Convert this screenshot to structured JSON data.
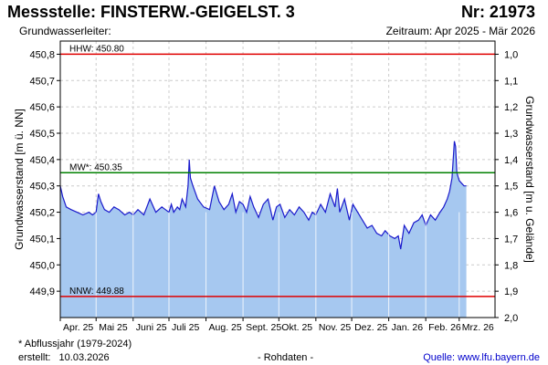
{
  "header": {
    "title": "Messstelle: FINSTERW.-GEIGELST. 3",
    "id_label": "Nr: 21973",
    "subtitle_left": "Grundwasserleiter:",
    "subtitle_right": "Zeitraum: Apr 2025 - Mär 2026"
  },
  "footer": {
    "footnote": "* Abflussjahr (1979-2024)",
    "created_label": "erstellt:",
    "created_date": "10.03.2026",
    "raw_label": "- Rohdaten -",
    "source_label": "Quelle:",
    "source_link": "www.lfu.bayern.de"
  },
  "colors": {
    "area_fill": "#a6c8f0",
    "line": "#1a1acc",
    "hhw": "#e00000",
    "nnw": "#e00000",
    "mw": "#008000",
    "grid": "#cccccc",
    "month_grid": "#ffffff"
  },
  "chart_data": {
    "type": "area",
    "ylabel": "Grundwasserstand [m ü. NN]",
    "ylabel_right": "Grundwasserstand [m u. Gelände]",
    "ylim": [
      449.8,
      450.85
    ],
    "yticks": [
      "449,9",
      "450,0",
      "450,1",
      "450,2",
      "450,3",
      "450,4",
      "450,5",
      "450,6",
      "450,7",
      "450,8"
    ],
    "yticks_right": [
      "1,0",
      "1,1",
      "1,2",
      "1,3",
      "1,4",
      "1,5",
      "1,6",
      "1,7",
      "1,8",
      "1,9",
      "2,0"
    ],
    "x_months": [
      "Apr. 25",
      "Mai 25",
      "Juni 25",
      "Juli 25",
      "Aug. 25",
      "Sept. 25",
      "Okt. 25",
      "Nov. 25",
      "Dez. 25",
      "Jan. 26",
      "Feb. 26",
      "Mrz. 26"
    ],
    "x_start": "2025-04-01",
    "x_end": "2026-03-31",
    "reference_lines": [
      {
        "label": "HHW: 450.80",
        "value": 450.8,
        "color": "#e00000"
      },
      {
        "label": "MW*: 450.35",
        "value": 450.35,
        "color": "#008000"
      },
      {
        "label": "NNW: 449.88",
        "value": 449.88,
        "color": "#e00000"
      }
    ],
    "series": [
      {
        "dates": [
          "2025-04-01",
          "2025-04-03",
          "2025-04-06",
          "2025-04-10",
          "2025-04-15",
          "2025-04-20",
          "2025-04-25",
          "2025-04-28",
          "2025-05-01",
          "2025-05-03",
          "2025-05-05",
          "2025-05-08",
          "2025-05-12",
          "2025-05-16",
          "2025-05-20",
          "2025-05-25",
          "2025-05-29",
          "2025-06-01",
          "2025-06-05",
          "2025-06-10",
          "2025-06-15",
          "2025-06-20",
          "2025-06-25",
          "2025-06-28",
          "2025-07-01",
          "2025-07-03",
          "2025-07-05",
          "2025-07-08",
          "2025-07-10",
          "2025-07-12",
          "2025-07-15",
          "2025-07-17",
          "2025-07-18",
          "2025-07-19",
          "2025-07-21",
          "2025-07-25",
          "2025-07-30",
          "2025-08-04",
          "2025-08-08",
          "2025-08-12",
          "2025-08-16",
          "2025-08-20",
          "2025-08-23",
          "2025-08-26",
          "2025-08-29",
          "2025-09-01",
          "2025-09-04",
          "2025-09-07",
          "2025-09-10",
          "2025-09-14",
          "2025-09-18",
          "2025-09-22",
          "2025-09-26",
          "2025-09-29",
          "2025-10-02",
          "2025-10-06",
          "2025-10-10",
          "2025-10-14",
          "2025-10-18",
          "2025-10-22",
          "2025-10-26",
          "2025-10-29",
          "2025-11-01",
          "2025-11-05",
          "2025-11-09",
          "2025-11-13",
          "2025-11-17",
          "2025-11-19",
          "2025-11-21",
          "2025-11-25",
          "2025-11-29",
          "2025-12-02",
          "2025-12-06",
          "2025-12-10",
          "2025-12-14",
          "2025-12-18",
          "2025-12-22",
          "2025-12-26",
          "2025-12-29",
          "2026-01-02",
          "2026-01-06",
          "2026-01-09",
          "2026-01-11",
          "2026-01-14",
          "2026-01-18",
          "2026-01-22",
          "2026-01-26",
          "2026-01-29",
          "2026-02-01",
          "2026-02-05",
          "2026-02-09",
          "2026-02-13",
          "2026-02-16",
          "2026-02-19",
          "2026-02-21",
          "2026-02-23",
          "2026-02-25",
          "2026-02-26",
          "2026-02-27",
          "2026-03-01",
          "2026-03-03",
          "2026-03-05",
          "2026-03-07"
        ],
        "values": [
          450.3,
          450.26,
          450.22,
          450.21,
          450.2,
          450.19,
          450.2,
          450.19,
          450.2,
          450.27,
          450.24,
          450.21,
          450.2,
          450.22,
          450.21,
          450.19,
          450.2,
          450.19,
          450.21,
          450.19,
          450.25,
          450.2,
          450.22,
          450.21,
          450.2,
          450.23,
          450.2,
          450.22,
          450.21,
          450.25,
          450.22,
          450.3,
          450.4,
          450.33,
          450.3,
          450.25,
          450.22,
          450.21,
          450.3,
          450.24,
          450.21,
          450.23,
          450.27,
          450.2,
          450.24,
          450.23,
          450.2,
          450.26,
          450.22,
          450.18,
          450.23,
          450.25,
          450.17,
          450.22,
          450.23,
          450.18,
          450.21,
          450.19,
          450.22,
          450.2,
          450.17,
          450.2,
          450.19,
          450.23,
          450.2,
          450.27,
          450.22,
          450.29,
          450.2,
          450.25,
          450.17,
          450.23,
          450.2,
          450.17,
          450.14,
          450.15,
          450.12,
          450.11,
          450.13,
          450.11,
          450.1,
          450.11,
          450.06,
          450.15,
          450.12,
          450.16,
          450.17,
          450.19,
          450.15,
          450.19,
          450.17,
          450.2,
          450.22,
          450.25,
          450.28,
          450.33,
          450.47,
          450.45,
          450.35,
          450.32,
          450.31,
          450.3,
          450.3
        ]
      }
    ]
  }
}
